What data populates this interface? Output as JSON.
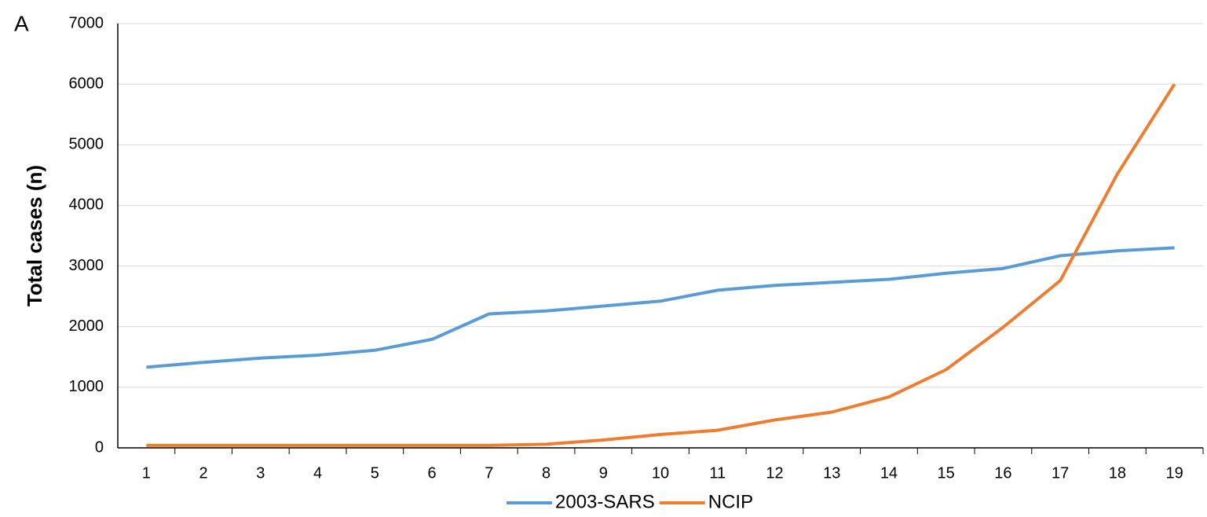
{
  "chart_data": {
    "type": "line",
    "panel_label": "A",
    "y_label": "Total cases (n)",
    "categories": [
      "1",
      "2",
      "3",
      "4",
      "5",
      "6",
      "7",
      "8",
      "9",
      "10",
      "11",
      "12",
      "13",
      "14",
      "15",
      "16",
      "17",
      "18",
      "19"
    ],
    "series": [
      {
        "name": "2003-SARS",
        "color": "#5b9bd5",
        "values": [
          1330,
          1410,
          1480,
          1530,
          1610,
          1790,
          2210,
          2260,
          2340,
          2420,
          2600,
          2680,
          2730,
          2780,
          2880,
          2960,
          3170,
          3250,
          3300
        ]
      },
      {
        "name": "NCIP",
        "color": "#ed7d31",
        "values": [
          40,
          40,
          40,
          40,
          40,
          40,
          40,
          60,
          130,
          220,
          290,
          460,
          590,
          840,
          1290,
          1990,
          2760,
          4520,
          6000
        ]
      }
    ],
    "ylim": [
      0,
      7000
    ],
    "yticks": [
      0,
      1000,
      2000,
      3000,
      4000,
      5000,
      6000,
      7000
    ],
    "grid": true,
    "legend": "bottom"
  }
}
